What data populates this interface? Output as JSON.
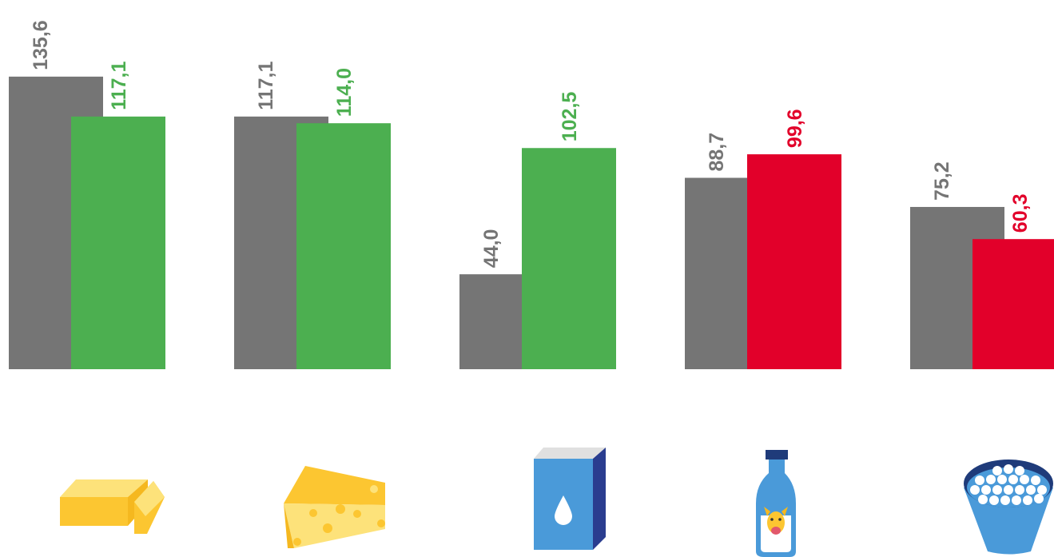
{
  "chart_data": {
    "type": "bar",
    "categories": [
      "butter-icon",
      "cheese-icon",
      "milk-powder-icon",
      "milk-bottle-icon",
      "cottage-cheese-icon"
    ],
    "series": [
      {
        "values": [
          135.6,
          117.1,
          44.0,
          88.7,
          75.2
        ]
      },
      {
        "values": [
          117.1,
          114.0,
          102.5,
          99.6,
          60.3
        ]
      }
    ],
    "labels": [
      [
        "135,6",
        "117,1",
        "44,0",
        "88,7",
        "75,2"
      ],
      [
        "117,1",
        "114,0",
        "102,5",
        "99,6",
        "60,3"
      ]
    ],
    "colors": {
      "base": "#757575",
      "higher": "#4caf50",
      "lower": "#e2002a"
    },
    "bar_colors": [
      [
        "#757575",
        "#757575",
        "#757575",
        "#757575",
        "#757575"
      ],
      [
        "#4caf50",
        "#4caf50",
        "#4caf50",
        "#e2002a",
        "#e2002a"
      ]
    ],
    "ylim": [
      0,
      140
    ],
    "grid": false,
    "legend": "none"
  }
}
